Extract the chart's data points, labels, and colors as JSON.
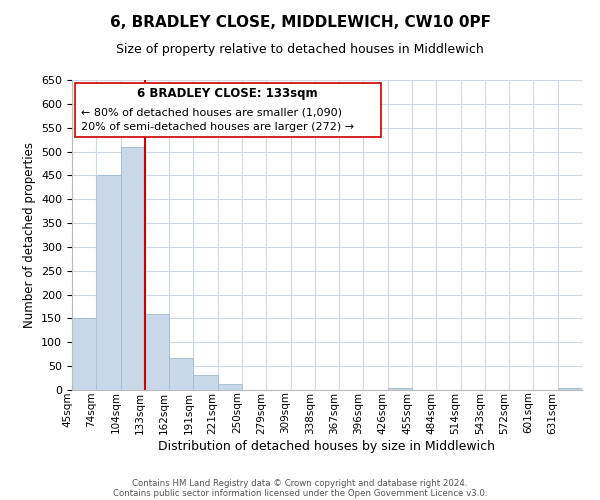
{
  "title": "6, BRADLEY CLOSE, MIDDLEWICH, CW10 0PF",
  "subtitle": "Size of property relative to detached houses in Middlewich",
  "xlabel": "Distribution of detached houses by size in Middlewich",
  "ylabel": "Number of detached properties",
  "bar_color": "#c8d8e8",
  "bar_edge_color": "#a8c0d4",
  "vline_color": "#cc0000",
  "vline_x": 3,
  "bin_labels": [
    "45sqm",
    "74sqm",
    "104sqm",
    "133sqm",
    "162sqm",
    "191sqm",
    "221sqm",
    "250sqm",
    "279sqm",
    "309sqm",
    "338sqm",
    "367sqm",
    "396sqm",
    "426sqm",
    "455sqm",
    "484sqm",
    "514sqm",
    "543sqm",
    "572sqm",
    "601sqm",
    "631sqm"
  ],
  "bar_heights": [
    150,
    450,
    510,
    160,
    67,
    32,
    12,
    0,
    0,
    0,
    0,
    0,
    0,
    5,
    0,
    0,
    0,
    0,
    0,
    0,
    5
  ],
  "ylim": [
    0,
    650
  ],
  "yticks": [
    0,
    50,
    100,
    150,
    200,
    250,
    300,
    350,
    400,
    450,
    500,
    550,
    600,
    650
  ],
  "annotation_title": "6 BRADLEY CLOSE: 133sqm",
  "annotation_line1": "← 80% of detached houses are smaller (1,090)",
  "annotation_line2": "20% of semi-detached houses are larger (272) →",
  "footer1": "Contains HM Land Registry data © Crown copyright and database right 2024.",
  "footer2": "Contains public sector information licensed under the Open Government Licence v3.0.",
  "background_color": "#ffffff",
  "grid_color": "#d0d8e8"
}
